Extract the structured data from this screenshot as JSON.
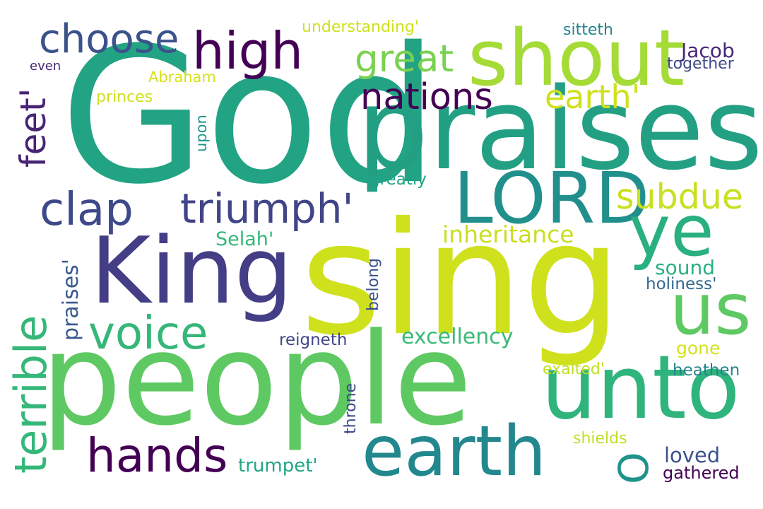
{
  "words": [
    {
      "text": "God",
      "color": "#22a384",
      "rotation": "horizontal"
    },
    {
      "text": "sing",
      "color": "#cfe11c",
      "rotation": "horizontal"
    },
    {
      "text": "people",
      "color": "#5ec962",
      "rotation": "horizontal"
    },
    {
      "text": "praises",
      "color": "#23a083",
      "rotation": "horizontal"
    },
    {
      "text": "shout",
      "color": "#a5db36",
      "rotation": "horizontal"
    },
    {
      "text": "unto",
      "color": "#2fb47c",
      "rotation": "horizontal"
    },
    {
      "text": "King",
      "color": "#433e85",
      "rotation": "horizontal"
    },
    {
      "text": "LORD",
      "color": "#21908d",
      "rotation": "horizontal"
    },
    {
      "text": "us",
      "color": "#5ec962",
      "rotation": "horizontal"
    },
    {
      "text": "earth",
      "color": "#23888e",
      "rotation": "horizontal"
    },
    {
      "text": "ye",
      "color": "#2ab07f",
      "rotation": "horizontal"
    },
    {
      "text": "high",
      "color": "#440154",
      "rotation": "horizontal"
    },
    {
      "text": "choose",
      "color": "#3b528b",
      "rotation": "horizontal"
    },
    {
      "text": "great",
      "color": "#7ad151",
      "rotation": "horizontal"
    },
    {
      "text": "nations",
      "color": "#440154",
      "rotation": "horizontal"
    },
    {
      "text": "earth'",
      "color": "#cfe11c",
      "rotation": "horizontal"
    },
    {
      "text": "clap",
      "color": "#3e4989",
      "rotation": "horizontal"
    },
    {
      "text": "triumph'",
      "color": "#414487",
      "rotation": "horizontal"
    },
    {
      "text": "subdue",
      "color": "#c8e020",
      "rotation": "horizontal"
    },
    {
      "text": "voice",
      "color": "#35b779",
      "rotation": "horizontal"
    },
    {
      "text": "hands",
      "color": "#440154",
      "rotation": "horizontal"
    },
    {
      "text": "terrible",
      "color": "#35b779",
      "rotation": "vertical"
    },
    {
      "text": "feet'",
      "color": "#482475",
      "rotation": "vertical"
    },
    {
      "text": "O",
      "color": "#20928c",
      "rotation": "vertical"
    },
    {
      "text": "inheritance",
      "color": "#c8e020",
      "rotation": "horizontal"
    },
    {
      "text": "excellency",
      "color": "#3aba76",
      "rotation": "horizontal"
    },
    {
      "text": "Jacob",
      "color": "#482878",
      "rotation": "horizontal"
    },
    {
      "text": "Selah'",
      "color": "#35b779",
      "rotation": "horizontal"
    },
    {
      "text": "sound",
      "color": "#2ab07f",
      "rotation": "horizontal"
    },
    {
      "text": "praises'",
      "color": "#38598c",
      "rotation": "vertical"
    },
    {
      "text": "trumpet'",
      "color": "#22a785",
      "rotation": "horizontal"
    },
    {
      "text": "loved",
      "color": "#3b528b",
      "rotation": "horizontal"
    },
    {
      "text": "gone",
      "color": "#d5e21a",
      "rotation": "horizontal"
    },
    {
      "text": "holiness'",
      "color": "#31688e",
      "rotation": "horizontal"
    },
    {
      "text": "reigneth",
      "color": "#404688",
      "rotation": "horizontal"
    },
    {
      "text": "heathen",
      "color": "#25848e",
      "rotation": "horizontal"
    },
    {
      "text": "gathered",
      "color": "#440154",
      "rotation": "horizontal"
    },
    {
      "text": "understanding'",
      "color": "#cfe11c",
      "rotation": "horizontal"
    },
    {
      "text": "sitteth",
      "color": "#25848e",
      "rotation": "horizontal"
    },
    {
      "text": "together",
      "color": "#3e4989",
      "rotation": "horizontal"
    },
    {
      "text": "Abraham",
      "color": "#d8e219",
      "rotation": "horizontal"
    },
    {
      "text": "princes",
      "color": "#d0e11c",
      "rotation": "horizontal"
    },
    {
      "text": "even",
      "color": "#482878",
      "rotation": "horizontal"
    },
    {
      "text": "upon",
      "color": "#1f968b",
      "rotation": "vertical"
    },
    {
      "text": "greatly",
      "color": "#20a386",
      "rotation": "horizontal"
    },
    {
      "text": "belong",
      "color": "#3b528b",
      "rotation": "vertical"
    },
    {
      "text": "exalted'",
      "color": "#c2df23",
      "rotation": "horizontal"
    },
    {
      "text": "shields",
      "color": "#bddf26",
      "rotation": "horizontal"
    },
    {
      "text": "throne",
      "color": "#3e4989",
      "rotation": "vertical"
    }
  ]
}
